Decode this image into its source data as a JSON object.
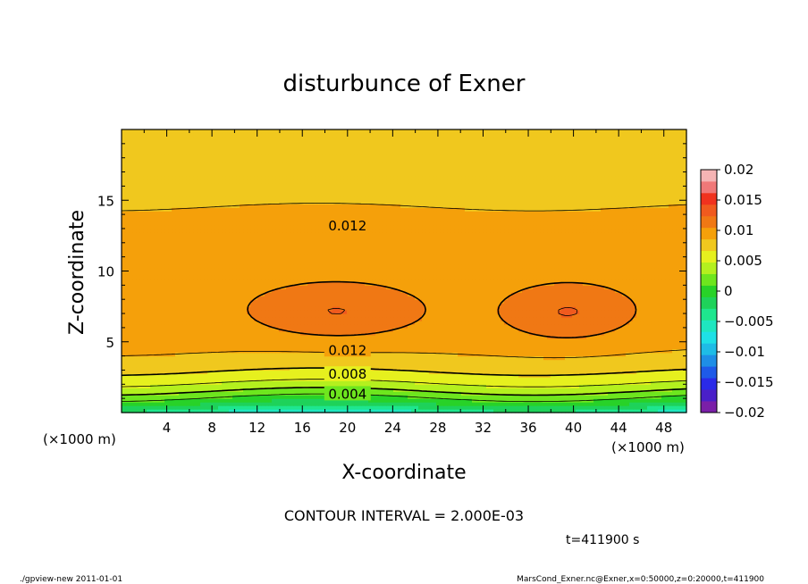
{
  "chart_data": {
    "type": "heatmap",
    "title": "disturbunce of Exner",
    "xlabel": "X-coordinate",
    "ylabel": "Z-coordinate",
    "x_unit_left": "(×1000 m)",
    "x_unit_right": "(×1000 m)",
    "x_ticks": [
      4,
      8,
      12,
      16,
      20,
      24,
      28,
      32,
      36,
      40,
      44,
      48
    ],
    "y_ticks": [
      5,
      10,
      15
    ],
    "xlim": [
      0,
      50
    ],
    "ylim": [
      0,
      20
    ],
    "contour_interval_text": "CONTOUR INTERVAL = 2.000E-03",
    "time_text": "t=411900 s",
    "contour_labels": [
      {
        "value": "0.012",
        "x": 20,
        "z": 13.2
      },
      {
        "value": "0.012",
        "x": 20,
        "z": 4.4
      },
      {
        "value": "0.008",
        "x": 20,
        "z": 2.7
      },
      {
        "value": "0.004",
        "x": 20,
        "z": 1.3
      }
    ],
    "colorbar": {
      "levels": [
        -0.02,
        -0.018,
        -0.016,
        -0.014,
        -0.012,
        -0.01,
        -0.008,
        -0.006,
        -0.004,
        -0.002,
        0,
        0.002,
        0.004,
        0.006,
        0.008,
        0.01,
        0.012,
        0.014,
        0.016,
        0.018,
        0.02
      ],
      "tick_labels": [
        "0.02",
        "0.015",
        "0.01",
        "0.005",
        "0",
        "−0.005",
        "−0.01",
        "−0.015",
        "−0.02"
      ],
      "colors": [
        "#7a1fa8",
        "#4a1fc8",
        "#2a2ae8",
        "#1e5ae8",
        "#1e8ee6",
        "#1ebce6",
        "#1ee0e6",
        "#1ee6c0",
        "#1ee68e",
        "#1ed25a",
        "#28d228",
        "#6ee61e",
        "#b4f01e",
        "#e6f01e",
        "#f0c81e",
        "#f5a00a",
        "#f07814",
        "#f05a1e",
        "#f0321e",
        "#f07878",
        "#f5b4b4"
      ]
    }
  },
  "footer": {
    "left": "./gpview-new  2011-01-01",
    "right": "MarsCond_Exner.nc@Exner,x=0:50000,z=0:20000,t=411900"
  }
}
